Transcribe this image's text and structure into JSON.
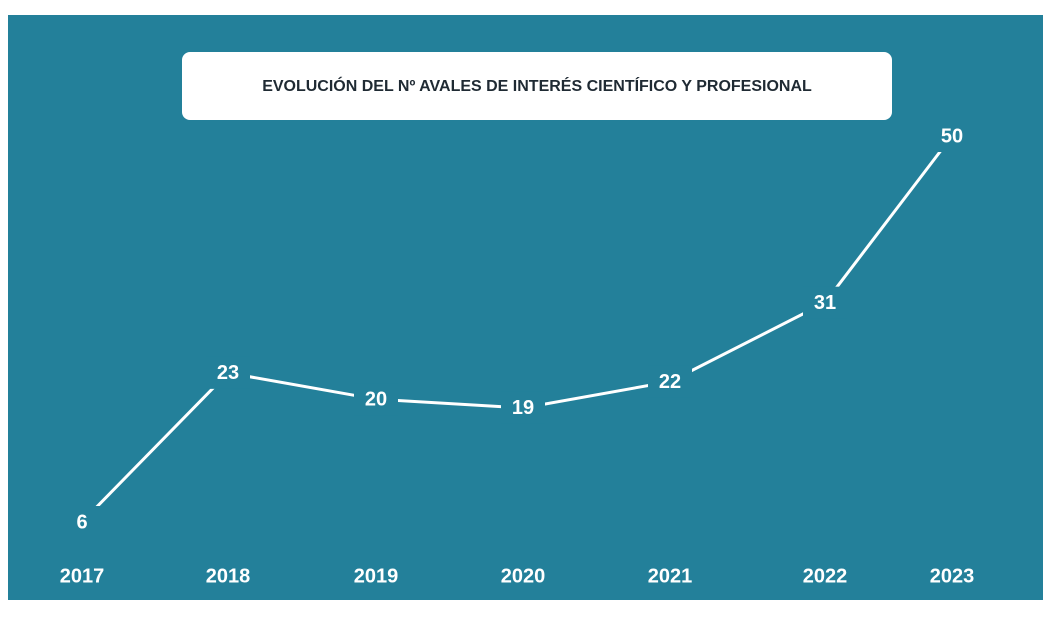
{
  "chart_data": {
    "type": "line",
    "title": "EVOLUCIÓN DEL Nº AVALES DE INTERÉS CIENTÍFICO Y PROFESIONAL",
    "categories": [
      "2017",
      "2018",
      "2019",
      "2020",
      "2021",
      "2022",
      "2023"
    ],
    "series": [
      {
        "color": "#ffffff",
        "values": [
          6,
          23,
          20,
          19,
          22,
          31,
          50
        ]
      }
    ]
  }
}
